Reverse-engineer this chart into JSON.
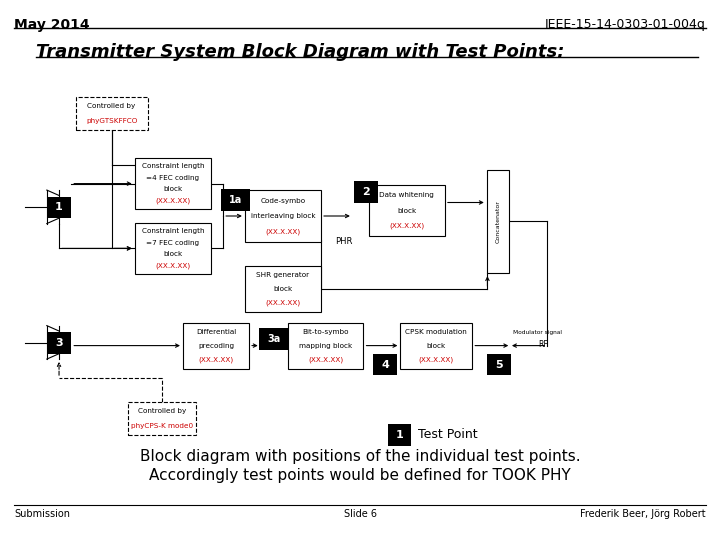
{
  "title_left": "May 2014",
  "title_right": "IEEE-15-14-0303-01-004q",
  "slide_title": "Transmitter System Block Diagram with Test Points:",
  "footer_left": "Submission",
  "footer_center": "Slide 6",
  "footer_right": "Frederik Beer, Jörg Robert",
  "bottom_text1": "Block diagram with positions of the individual test points.",
  "bottom_text2": "Accordingly test points would be defined for TOOK PHY",
  "legend_label": "Test Point",
  "bg_color": "#ffffff",
  "red_text": "#cc0000"
}
